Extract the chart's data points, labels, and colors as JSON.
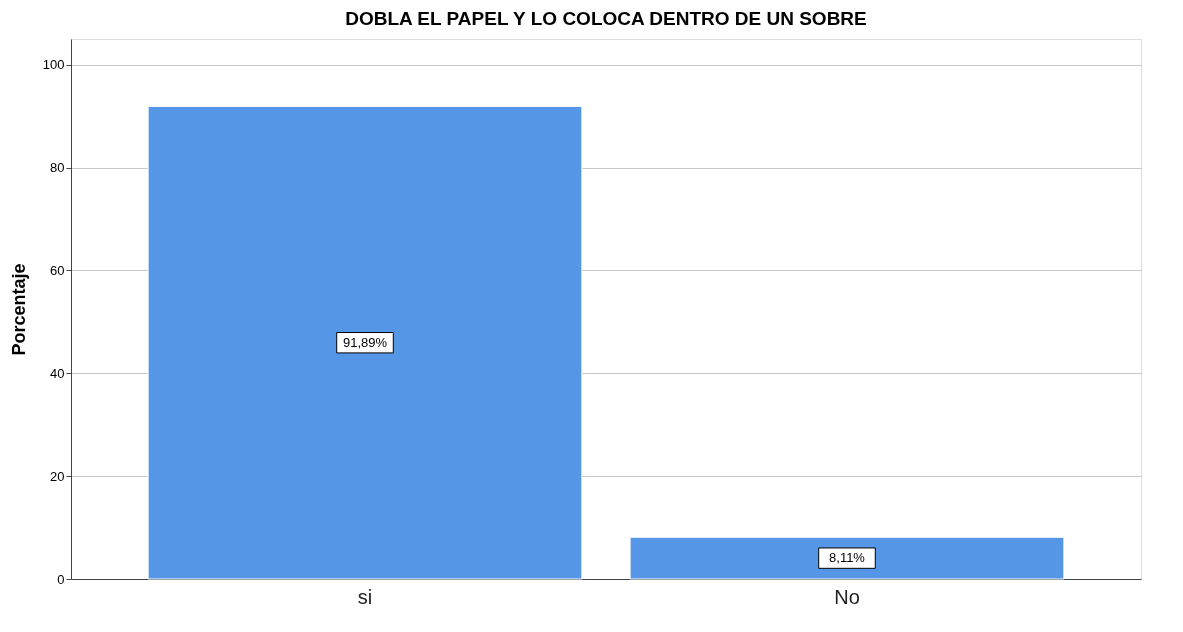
{
  "chart_data": {
    "type": "bar",
    "title": "DOBLA EL PAPEL Y LO COLOCA DENTRO DE UN SOBRE",
    "ylabel": "Porcentaje",
    "categories": [
      "si",
      "No"
    ],
    "values": [
      91.89,
      8.11
    ],
    "value_labels": [
      "91,89%",
      "8,11%"
    ],
    "color": "#5596e6",
    "ylim": [
      0,
      105
    ],
    "yticks": [
      0,
      20,
      40,
      60,
      80,
      100
    ],
    "grid": "y"
  }
}
